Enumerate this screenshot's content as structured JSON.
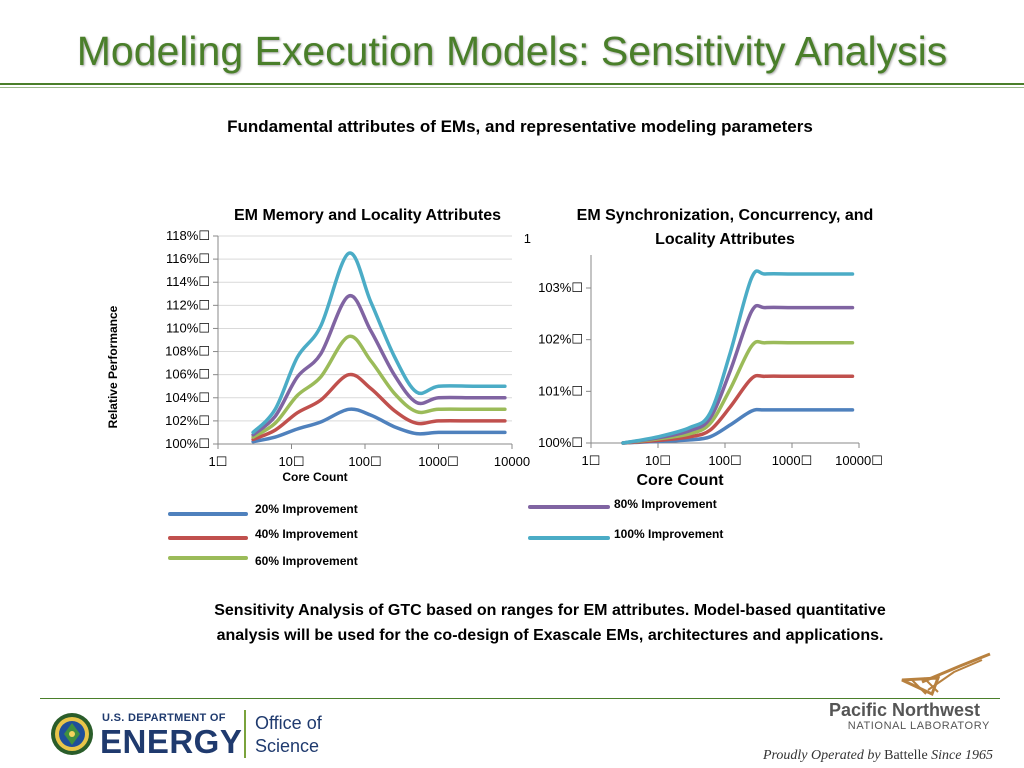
{
  "slide": {
    "title": "Modeling Execution Models: Sensitivity Analysis",
    "subtitle": "Fundamental attributes of EMs, and representative modeling parameters",
    "caption": "Sensitivity Analysis of GTC based on ranges for EM attributes. Model-based quantitative analysis will be used for the co-design of Exascale EMs, architectures and applications."
  },
  "legend": [
    {
      "label": "20% Improvement",
      "color": "#4f81bd"
    },
    {
      "label": "40% Improvement",
      "color": "#c0504d"
    },
    {
      "label": "60% Improvement",
      "color": "#9bbb59"
    },
    {
      "label": "80% Improvement",
      "color": "#8064a2"
    },
    {
      "label": "100% Improvement",
      "color": "#4bacc6"
    }
  ],
  "chart_data": [
    {
      "type": "line",
      "title": "EM Memory and Locality Attributes",
      "ylabel": "Relative Performance",
      "xlabel": "Core Count",
      "x_scale": "log",
      "x_ticks": [
        "1☐",
        "10☐",
        "100☐",
        "1000☐",
        "10000"
      ],
      "y_ticks": [
        "100%☐",
        "102%☐",
        "104%☐",
        "106%☐",
        "108%☐",
        "110%☐",
        "112%☐",
        "114%☐",
        "116%☐",
        "118%☐"
      ],
      "ylim": [
        100,
        118
      ],
      "grid": "horizontal",
      "x": [
        3,
        6,
        12,
        25,
        60,
        120,
        250,
        500,
        1000,
        3000,
        8000
      ],
      "series": [
        {
          "name": "20% Improvement",
          "values": [
            100.2,
            100.6,
            101.3,
            101.9,
            103.0,
            102.5,
            101.5,
            100.9,
            101.0,
            101.0,
            101.0
          ]
        },
        {
          "name": "40% Improvement",
          "values": [
            100.4,
            101.2,
            102.7,
            103.8,
            106.0,
            104.8,
            102.9,
            101.8,
            102.0,
            102.0,
            102.0
          ]
        },
        {
          "name": "60% Improvement",
          "values": [
            100.6,
            101.8,
            104.2,
            105.8,
            109.3,
            107.2,
            104.4,
            102.8,
            103.0,
            103.0,
            103.0
          ]
        },
        {
          "name": "80% Improvement",
          "values": [
            100.8,
            102.4,
            105.8,
            107.8,
            112.8,
            109.8,
            106.0,
            103.6,
            104.0,
            104.0,
            104.0
          ]
        },
        {
          "name": "100% Improvement",
          "values": [
            101.0,
            103.0,
            107.5,
            110.2,
            116.5,
            112.3,
            107.6,
            104.5,
            105.0,
            105.0,
            105.0
          ]
        }
      ]
    },
    {
      "type": "line",
      "title": "EM Synchronization, Concurrency, and Locality Attributes",
      "xlabel": "Core Count",
      "x_scale": "log",
      "x_ticks": [
        "1☐",
        "10☐",
        "100☐",
        "1000☐",
        "10000☐"
      ],
      "y_ticks": [
        "100%☐",
        "101%☐",
        "102%☐",
        "103%☐"
      ],
      "ylim": [
        100,
        103.6
      ],
      "grid": "none",
      "x": [
        3,
        10,
        30,
        60,
        120,
        250,
        400,
        1000,
        3000,
        8000
      ],
      "series": [
        {
          "name": "20% Improvement",
          "values": [
            100.0,
            100.03,
            100.06,
            100.12,
            100.35,
            100.62,
            100.64,
            100.64,
            100.64,
            100.64
          ]
        },
        {
          "name": "40% Improvement",
          "values": [
            100.0,
            100.05,
            100.12,
            100.25,
            100.7,
            101.25,
            101.29,
            101.29,
            101.29,
            101.29
          ]
        },
        {
          "name": "60% Improvement",
          "values": [
            100.0,
            100.08,
            100.18,
            100.38,
            101.05,
            101.88,
            101.94,
            101.94,
            101.94,
            101.94
          ]
        },
        {
          "name": "80% Improvement",
          "values": [
            100.0,
            100.1,
            100.24,
            100.48,
            101.4,
            102.55,
            102.62,
            102.62,
            102.62,
            102.62
          ]
        },
        {
          "name": "100% Improvement",
          "values": [
            100.0,
            100.12,
            100.3,
            100.58,
            101.75,
            103.2,
            103.27,
            103.27,
            103.27,
            103.27
          ]
        }
      ],
      "stray_y_label": "1"
    }
  ],
  "footer": {
    "doe_small": "U.S. DEPARTMENT OF",
    "doe_big": "ENERGY",
    "office_line1": "Office of",
    "office_line2": "Science",
    "pnnl_line1": "Pacific Northwest",
    "pnnl_line2": "NATIONAL LABORATORY",
    "proud_prefix": "Proudly Operated by ",
    "proud_brand": "Battelle",
    "proud_suffix": " Since 1965"
  }
}
